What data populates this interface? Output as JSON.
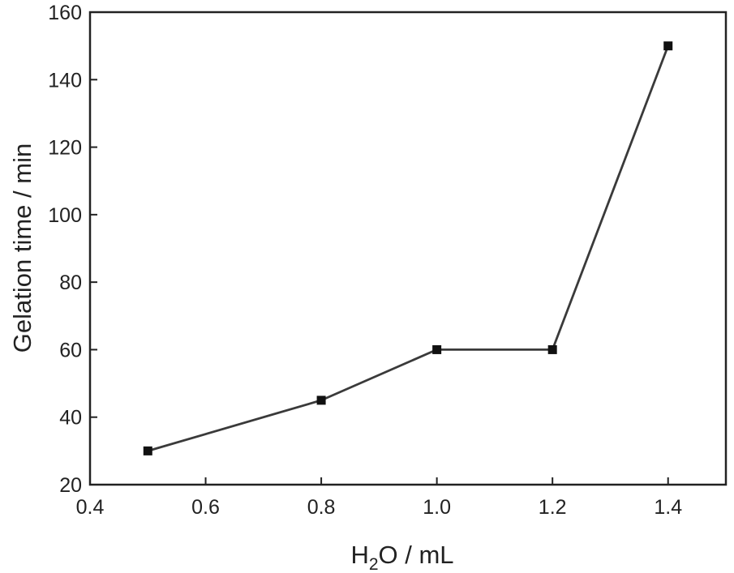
{
  "chart_data": {
    "type": "line",
    "title": "",
    "xlabel": {
      "main": "H",
      "subscript": "2",
      "rest": "O / mL"
    },
    "ylabel": "Gelation time / min",
    "xlim": [
      0.4,
      1.5
    ],
    "ylim": [
      20,
      160
    ],
    "x_ticks": [
      0.4,
      0.6,
      0.8,
      1.0,
      1.2,
      1.4
    ],
    "x_tick_labels": [
      "0.4",
      "0.6",
      "0.8",
      "1.0",
      "1.2",
      "1.4"
    ],
    "y_ticks": [
      20,
      40,
      60,
      80,
      100,
      120,
      140,
      160
    ],
    "y_tick_labels": [
      "20",
      "40",
      "60",
      "80",
      "100",
      "120",
      "140",
      "160"
    ],
    "grid": false,
    "legend": "none",
    "marker": "square",
    "series": [
      {
        "x": [
          0.5,
          0.8,
          1.0,
          1.2,
          1.4
        ],
        "y": [
          30,
          45,
          60,
          60,
          150
        ]
      }
    ],
    "colors": {
      "line": "#3a3a3a",
      "marker": "#111111",
      "axis": "#222222",
      "text": "#222222"
    }
  }
}
